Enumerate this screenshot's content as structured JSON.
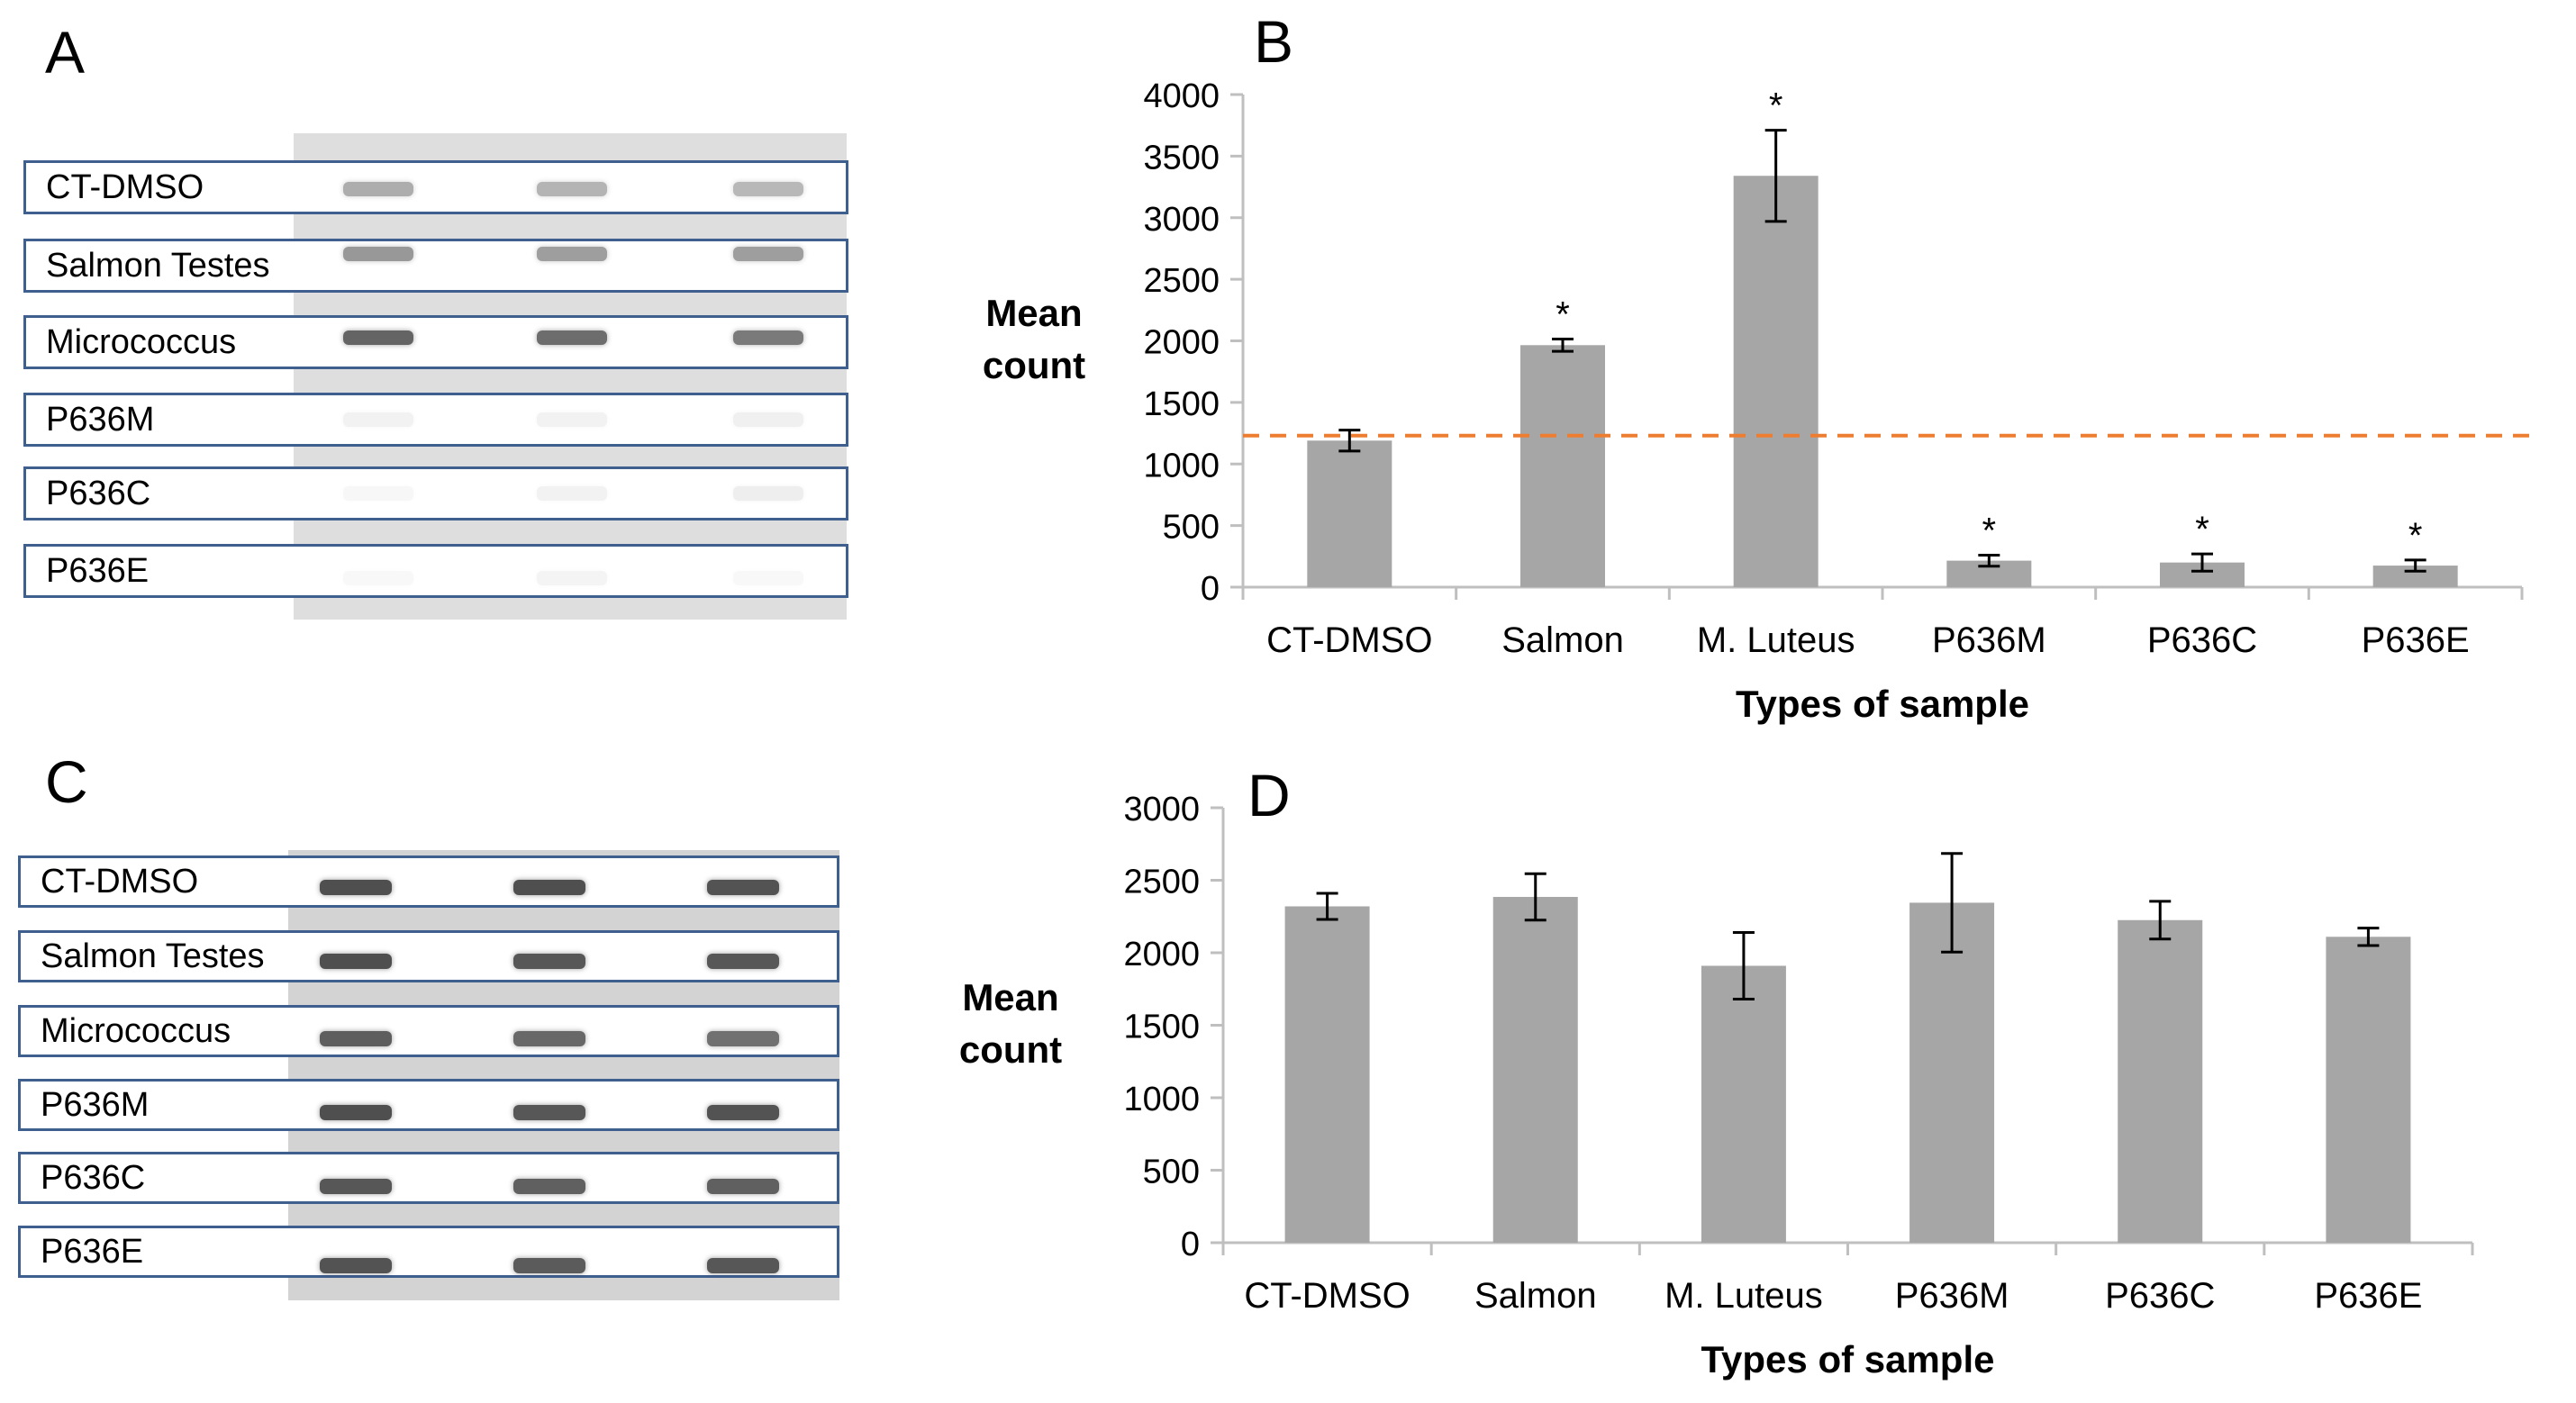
{
  "panels": {
    "a": "A",
    "b": "B",
    "c": "C",
    "d": "D"
  },
  "blot_a": {
    "labels": [
      "CT-DMSO",
      "Salmon Testes",
      "Micrococcus",
      "P636M",
      "P636C",
      "P636E"
    ]
  },
  "blot_c": {
    "labels": [
      "CT-DMSO",
      "Salmon Testes",
      "Micrococcus",
      "P636M",
      "P636C",
      "P636E"
    ]
  },
  "chart_data": [
    {
      "panel": "B",
      "type": "bar",
      "categories": [
        "CT-DMSO",
        "Salmon",
        "M. Luteus",
        "P636M",
        "P636C",
        "P636E"
      ],
      "values": [
        1190,
        1965,
        3340,
        215,
        200,
        175
      ],
      "errors": [
        85,
        50,
        370,
        45,
        70,
        45
      ],
      "significance": [
        "",
        "*",
        "*",
        "*",
        "*",
        "*"
      ],
      "reference_line": 1230,
      "reference_color": "#ed7d31",
      "bar_color": "#a6a6a6",
      "ylabel_lines": [
        "Mean",
        "count"
      ],
      "xlabel": "Types of sample",
      "ylim": [
        0,
        4000
      ],
      "yticks": [
        0,
        500,
        1000,
        1500,
        2000,
        2500,
        3000,
        3500,
        4000
      ]
    },
    {
      "panel": "D",
      "type": "bar",
      "categories": [
        "CT-DMSO",
        "Salmon",
        "M. Luteus",
        "P636M",
        "P636C",
        "P636E"
      ],
      "values": [
        2320,
        2385,
        1910,
        2345,
        2225,
        2110
      ],
      "errors": [
        90,
        160,
        230,
        340,
        130,
        60
      ],
      "bar_color": "#a6a6a6",
      "ylabel_lines": [
        "Mean",
        "count"
      ],
      "xlabel": "Types of sample",
      "ylim": [
        0,
        3000
      ],
      "yticks": [
        0,
        500,
        1000,
        1500,
        2000,
        2500,
        3000
      ]
    }
  ]
}
